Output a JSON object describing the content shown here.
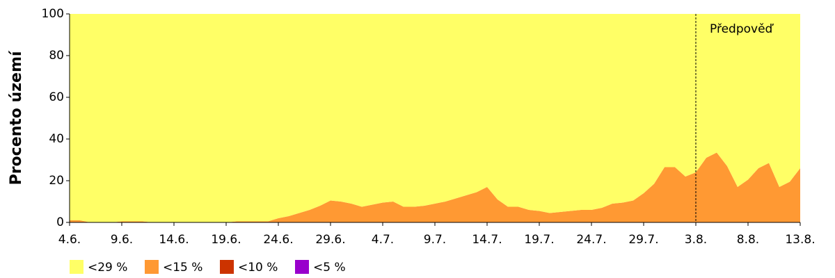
{
  "chart_data": {
    "type": "stacked_area",
    "ylabel": "Procento území",
    "categories": [
      "4.6.",
      null,
      null,
      null,
      null,
      "9.6.",
      null,
      null,
      null,
      null,
      "14.6.",
      null,
      null,
      null,
      null,
      "19.6.",
      null,
      null,
      null,
      null,
      "24.6.",
      null,
      null,
      null,
      null,
      "29.6.",
      null,
      null,
      null,
      null,
      "4.7.",
      null,
      null,
      null,
      null,
      "9.7.",
      null,
      null,
      null,
      null,
      "14.7.",
      null,
      null,
      null,
      null,
      "19.7.",
      null,
      null,
      null,
      null,
      "24.7.",
      null,
      null,
      null,
      null,
      "29.7.",
      null,
      null,
      null,
      null,
      "3.8.",
      null,
      null,
      null,
      null,
      "8.8.",
      null,
      null,
      null,
      null,
      "13.8."
    ],
    "series": [
      {
        "name": "<29 %",
        "color": "#ffff66",
        "values": [
          99,
          99,
          100,
          100,
          100,
          99.5,
          99.5,
          99.5,
          100,
          100,
          100,
          100,
          100,
          100,
          100,
          100,
          99.5,
          99.5,
          99.5,
          99.5,
          98,
          97,
          95.5,
          94,
          92,
          89.5,
          90,
          91,
          92.5,
          91.5,
          90.5,
          90,
          92.5,
          92.5,
          92,
          91,
          90,
          88.5,
          87,
          85.5,
          83,
          89,
          92.5,
          92.5,
          94,
          94.5,
          95.5,
          95,
          94.5,
          94,
          94,
          93,
          91,
          90.5,
          89.5,
          86,
          81.5,
          73.5,
          73.5,
          78,
          76,
          69,
          66.5,
          73,
          83,
          79.5,
          74,
          71.5,
          83,
          80.5,
          74
        ]
      },
      {
        "name": "<15 %",
        "color": "#ff9933",
        "values": [
          1,
          1,
          0,
          0,
          0,
          0.5,
          0.5,
          0.5,
          0,
          0,
          0,
          0,
          0,
          0,
          0,
          0,
          0.5,
          0.5,
          0.5,
          0.5,
          2,
          3,
          4.5,
          6,
          8,
          10.5,
          10,
          9,
          7.5,
          8.5,
          9.5,
          10,
          7.5,
          7.5,
          8,
          9,
          10,
          11.5,
          13,
          14.5,
          17,
          11,
          7.5,
          7.5,
          6,
          5.5,
          4.5,
          5,
          5.5,
          6,
          6,
          7,
          9,
          9.5,
          10.5,
          14,
          18.5,
          26.5,
          26.5,
          22,
          24,
          31,
          33.5,
          27,
          17,
          20.5,
          26,
          28.5,
          17,
          19.5,
          26
        ]
      },
      {
        "name": "<10 %",
        "color": "#cc3300",
        "values": [
          0,
          0,
          0,
          0,
          0,
          0,
          0,
          0,
          0,
          0,
          0,
          0,
          0,
          0,
          0,
          0,
          0,
          0,
          0,
          0,
          0,
          0,
          0,
          0,
          0,
          0,
          0,
          0,
          0,
          0,
          0,
          0,
          0,
          0,
          0,
          0,
          0,
          0,
          0,
          0,
          0,
          0,
          0,
          0,
          0,
          0,
          0,
          0,
          0,
          0,
          0,
          0,
          0,
          0,
          0,
          0,
          0,
          0,
          0,
          0,
          0,
          0,
          0,
          0,
          0,
          0,
          0,
          0,
          0,
          0,
          0
        ]
      },
      {
        "name": "<5 %",
        "color": "#9900cc",
        "values": [
          0,
          0,
          0,
          0,
          0,
          0,
          0,
          0,
          0,
          0,
          0,
          0,
          0,
          0,
          0,
          0,
          0,
          0,
          0,
          0,
          0,
          0,
          0,
          0,
          0,
          0,
          0,
          0,
          0,
          0,
          0,
          0,
          0,
          0,
          0,
          0,
          0,
          0,
          0,
          0,
          0,
          0,
          0,
          0,
          0,
          0,
          0,
          0,
          0,
          0,
          0,
          0,
          0,
          0,
          0,
          0,
          0,
          0,
          0,
          0,
          0,
          0,
          0,
          0,
          0,
          0,
          0,
          0,
          0,
          0,
          0
        ]
      }
    ],
    "ylim": [
      0,
      100
    ],
    "yticks": [
      0,
      20,
      40,
      60,
      80,
      100
    ],
    "annotation": {
      "text": "Předpověď",
      "x": "3.8."
    }
  }
}
